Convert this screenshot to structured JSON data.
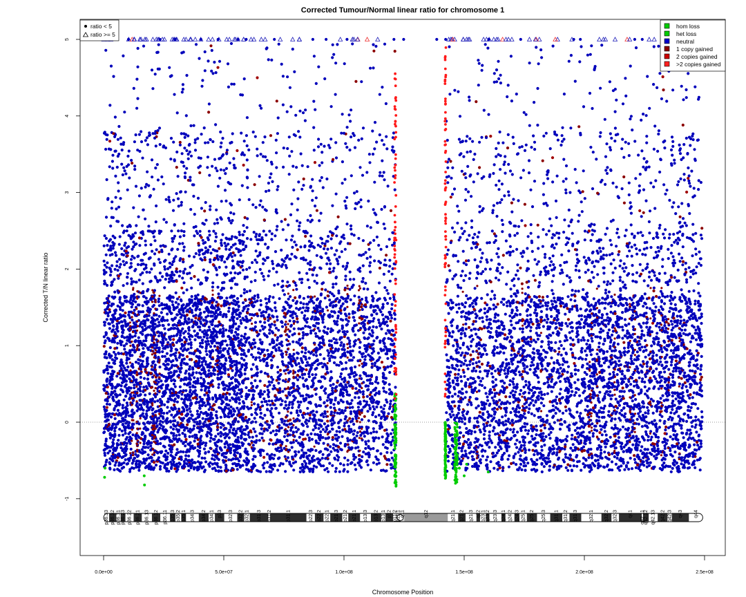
{
  "chart_data": {
    "type": "scatter",
    "title": "Corrected Tumour/Normal linear ratio for chromosome  1",
    "xlabel": "Chromosome Position",
    "ylabel": "Corrected T/N linear ratio",
    "xlim": [
      0,
      250000000
    ],
    "ylim": [
      -1.8,
      5.4
    ],
    "x_ticks": [
      0,
      50000000,
      100000000,
      150000000,
      200000000,
      250000000
    ],
    "x_tick_labels": [
      "0.0e+00",
      "5.0e+07",
      "1.0e+08",
      "1.5e+08",
      "2.0e+08",
      "2.5e+08"
    ],
    "y_ticks": [
      -1,
      0,
      1,
      2,
      3,
      4,
      5
    ],
    "y_tick_labels": [
      "-1",
      "0",
      "1",
      "2",
      "3",
      "4",
      "5"
    ],
    "reference_line": {
      "y": 0,
      "style": "dotted",
      "color": "#777777"
    },
    "grid": false,
    "colors": {
      "neutral": "#0000bb",
      "hom_loss": "#00cc00",
      "het_loss": "#00cc00",
      "one_copy_gained": "#8b0000",
      "two_copies_gained": "#a00000",
      "gt_two_copies_gained": "#ff1a1a",
      "centromere_gap": [
        121500000,
        142500000
      ]
    },
    "shape_legend": {
      "position": "top-left",
      "items": [
        {
          "label": "ratio < 5",
          "shape": "dot"
        },
        {
          "label": "ratio >= 5",
          "shape": "triangle"
        }
      ]
    },
    "color_legend": {
      "position": "top-right",
      "items": [
        {
          "label": "hom loss",
          "color": "#00cc00"
        },
        {
          "label": "het loss",
          "color": "#00cc00"
        },
        {
          "label": "neutral",
          "color": "#0000cc"
        },
        {
          "label": "1 copy gained",
          "color": "#8b0000"
        },
        {
          "label": "2 copies gained",
          "color": "#cc0000"
        },
        {
          "label": ">2 copies gained",
          "color": "#ff2020"
        }
      ]
    },
    "highlight_regions": [
      {
        "kind": "het loss",
        "x_start": 121000000,
        "x_end": 121700000,
        "y_min": -0.85,
        "y_max": 0.4
      },
      {
        "kind": "het loss",
        "x_start": 142000000,
        "x_end": 142400000,
        "y_min": -0.75,
        "y_max": 0.0
      },
      {
        "kind": "het loss",
        "x_start": 146000000,
        "x_end": 147200000,
        "y_min": -0.8,
        "y_max": 0.0
      },
      {
        "kind": ">2 copies gained",
        "x_start": 121000000,
        "x_end": 121700000,
        "y_min": 0.3,
        "y_max": 4.7
      },
      {
        "kind": ">2 copies gained",
        "x_start": 142000000,
        "x_end": 142400000,
        "y_min": 0.3,
        "y_max": 4.9
      }
    ],
    "cytobands": [
      {
        "name": "p36.33",
        "start": 0,
        "end": 2300000,
        "stain": "gneg"
      },
      {
        "name": "p36.32",
        "start": 2300000,
        "end": 5300000,
        "stain": "gpos"
      },
      {
        "name": "p36.31",
        "start": 5300000,
        "end": 7100000,
        "stain": "gneg"
      },
      {
        "name": "p36.23",
        "start": 7100000,
        "end": 9100000,
        "stain": "gpos"
      },
      {
        "name": "p36.22",
        "start": 9100000,
        "end": 12500000,
        "stain": "gneg"
      },
      {
        "name": "p36.21",
        "start": 12500000,
        "end": 15900000,
        "stain": "gpos"
      },
      {
        "name": "p36.13",
        "start": 15900000,
        "end": 20100000,
        "stain": "gneg"
      },
      {
        "name": "p36.12",
        "start": 20100000,
        "end": 23600000,
        "stain": "gpos"
      },
      {
        "name": "p36.11",
        "start": 23600000,
        "end": 27600000,
        "stain": "gneg"
      },
      {
        "name": "p35.3",
        "start": 27600000,
        "end": 29900000,
        "stain": "gpos"
      },
      {
        "name": "p35.2",
        "start": 29900000,
        "end": 32300000,
        "stain": "gneg"
      },
      {
        "name": "p35.1",
        "start": 32300000,
        "end": 34300000,
        "stain": "gpos"
      },
      {
        "name": "p34.3",
        "start": 34300000,
        "end": 39600000,
        "stain": "gneg"
      },
      {
        "name": "p34.2",
        "start": 39600000,
        "end": 43700000,
        "stain": "gpos"
      },
      {
        "name": "p34.1",
        "start": 43700000,
        "end": 46300000,
        "stain": "gneg"
      },
      {
        "name": "p33",
        "start": 46300000,
        "end": 50200000,
        "stain": "gpos"
      },
      {
        "name": "p32.3",
        "start": 50200000,
        "end": 55600000,
        "stain": "gneg"
      },
      {
        "name": "p32.2",
        "start": 55600000,
        "end": 58500000,
        "stain": "gpos"
      },
      {
        "name": "p32.1",
        "start": 58500000,
        "end": 60800000,
        "stain": "gneg"
      },
      {
        "name": "p31.3",
        "start": 60800000,
        "end": 68500000,
        "stain": "gpos"
      },
      {
        "name": "p31.2",
        "start": 68500000,
        "end": 69300000,
        "stain": "gneg"
      },
      {
        "name": "p31.1",
        "start": 69300000,
        "end": 84400000,
        "stain": "gpos"
      },
      {
        "name": "p22.3",
        "start": 84400000,
        "end": 87900000,
        "stain": "gneg"
      },
      {
        "name": "p22.2",
        "start": 87900000,
        "end": 91500000,
        "stain": "gpos"
      },
      {
        "name": "p22.1",
        "start": 91500000,
        "end": 94300000,
        "stain": "gneg"
      },
      {
        "name": "p21.3",
        "start": 94300000,
        "end": 99300000,
        "stain": "gpos"
      },
      {
        "name": "p21.2",
        "start": 99300000,
        "end": 101800000,
        "stain": "gneg"
      },
      {
        "name": "p21.1",
        "start": 101800000,
        "end": 106700000,
        "stain": "gpos"
      },
      {
        "name": "p13.3",
        "start": 106700000,
        "end": 111200000,
        "stain": "gneg"
      },
      {
        "name": "p13.2",
        "start": 111200000,
        "end": 115500000,
        "stain": "gpos"
      },
      {
        "name": "p13.1",
        "start": 115500000,
        "end": 117200000,
        "stain": "gneg"
      },
      {
        "name": "p12",
        "start": 117200000,
        "end": 120400000,
        "stain": "gpos"
      },
      {
        "name": "p11.2",
        "start": 120400000,
        "end": 121700000,
        "stain": "gneg"
      },
      {
        "name": "p11.1",
        "start": 121700000,
        "end": 123400000,
        "stain": "acen"
      },
      {
        "name": "q11",
        "start": 123400000,
        "end": 125100000,
        "stain": "acen"
      },
      {
        "name": "q12",
        "start": 125100000,
        "end": 143200000,
        "stain": "gvar"
      },
      {
        "name": "q21.1",
        "start": 143200000,
        "end": 147500000,
        "stain": "gneg"
      },
      {
        "name": "q21.2",
        "start": 147500000,
        "end": 150600000,
        "stain": "gpos"
      },
      {
        "name": "q21.3",
        "start": 150600000,
        "end": 155100000,
        "stain": "gneg"
      },
      {
        "name": "q22",
        "start": 155100000,
        "end": 156600000,
        "stain": "gpos"
      },
      {
        "name": "q23.1",
        "start": 156600000,
        "end": 159100000,
        "stain": "gneg"
      },
      {
        "name": "q23.2",
        "start": 159100000,
        "end": 160500000,
        "stain": "gpos"
      },
      {
        "name": "q23.3",
        "start": 160500000,
        "end": 165500000,
        "stain": "gneg"
      },
      {
        "name": "q24.1",
        "start": 165500000,
        "end": 167200000,
        "stain": "gpos"
      },
      {
        "name": "q24.2",
        "start": 167200000,
        "end": 170900000,
        "stain": "gneg"
      },
      {
        "name": "q24.3",
        "start": 170900000,
        "end": 173000000,
        "stain": "gpos"
      },
      {
        "name": "q25.1",
        "start": 173000000,
        "end": 176100000,
        "stain": "gneg"
      },
      {
        "name": "q25.2",
        "start": 176100000,
        "end": 180300000,
        "stain": "gpos"
      },
      {
        "name": "q25.3",
        "start": 180300000,
        "end": 185800000,
        "stain": "gneg"
      },
      {
        "name": "q31.1",
        "start": 185800000,
        "end": 190800000,
        "stain": "gpos"
      },
      {
        "name": "q31.2",
        "start": 190800000,
        "end": 193800000,
        "stain": "gneg"
      },
      {
        "name": "q31.3",
        "start": 193800000,
        "end": 198700000,
        "stain": "gpos"
      },
      {
        "name": "q32.1",
        "start": 198700000,
        "end": 207100000,
        "stain": "gneg"
      },
      {
        "name": "q32.2",
        "start": 207100000,
        "end": 211300000,
        "stain": "gpos"
      },
      {
        "name": "q32.3",
        "start": 211300000,
        "end": 214400000,
        "stain": "gneg"
      },
      {
        "name": "q41",
        "start": 214400000,
        "end": 223900000,
        "stain": "gpos"
      },
      {
        "name": "q42.11",
        "start": 223900000,
        "end": 224400000,
        "stain": "gneg"
      },
      {
        "name": "q42.12",
        "start": 224400000,
        "end": 226800000,
        "stain": "gpos"
      },
      {
        "name": "q42.13",
        "start": 226800000,
        "end": 230500000,
        "stain": "gneg"
      },
      {
        "name": "q42.2",
        "start": 230500000,
        "end": 234600000,
        "stain": "gpos"
      },
      {
        "name": "q42.3",
        "start": 234600000,
        "end": 236400000,
        "stain": "gneg"
      },
      {
        "name": "q43",
        "start": 236400000,
        "end": 243500000,
        "stain": "gpos"
      },
      {
        "name": "q44",
        "start": 243500000,
        "end": 249250621,
        "stain": "gneg"
      }
    ]
  }
}
